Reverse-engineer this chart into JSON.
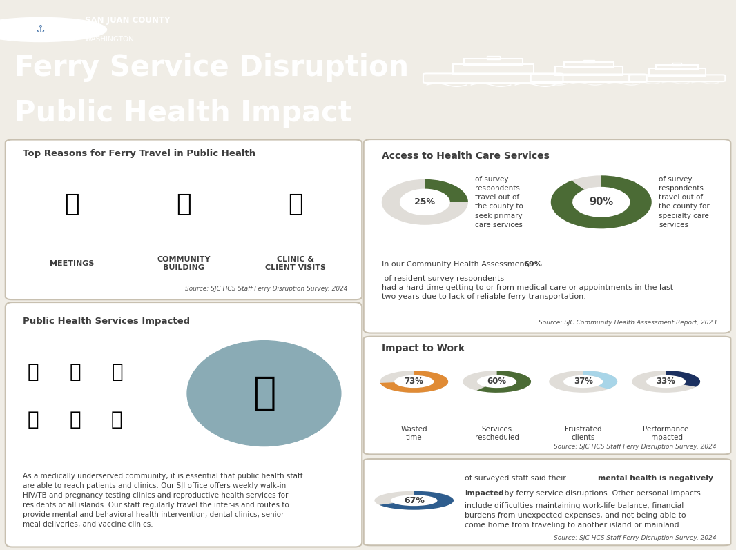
{
  "bg_header_color": "#4472a8",
  "bg_body_color": "#f0ede6",
  "title_line1": "Ferry Service Disruption",
  "title_line2": "Public Health Impact",
  "org_name": "SAN JUAN COUNTY",
  "org_sub": "WASHINGTON",
  "panel1_title": "Top Reasons for Ferry Travel in Public Health",
  "panel1_items": [
    "MEETINGS",
    "COMMUNITY\nBUILDING",
    "CLINIC &\nCLIENT VISITS"
  ],
  "panel1_source": "Source: SJC HCS Staff Ferry Disruption Survey, 2024",
  "panel2_title": "Access to Health Care Services",
  "panel2_pct1": 25,
  "panel2_pct2": 90,
  "panel2_text1": "of survey\nrespondents\ntravel out of\nthe county to\nseek primary\ncare services",
  "panel2_text2": "of survey\nrespondents\ntravel out of\nthe county for\nspecialty care\nservices",
  "panel2_body1": "In our Community Health Assessment, ",
  "panel2_bold": "69%",
  "panel2_body2": " of resident survey respondents\nhad a hard time getting to or from medical care or appointments in the last\ntwo years due to lack of reliable ferry transportation.",
  "panel2_source": "Source: SJC Community Health Assessment Report, 2023",
  "panel3_title": "Public Health Services Impacted",
  "panel3_body": "As a medically underserved community, it is essential that public health staff\nare able to reach patients and clinics. Our SJI office offers weekly walk-in\nHIV/TB and pregnancy testing clinics and reproductive health services for\nresidents of all islands. Our staff regularly travel the inter-island routes to\nprovide mental and behavioral health intervention, dental clinics, senior\nmeal deliveries, and vaccine clinics.",
  "panel4_title": "Impact to Work",
  "panel4_items": [
    {
      "pct": 73,
      "label": "Wasted\ntime",
      "color": "#E08B35"
    },
    {
      "pct": 60,
      "label": "Services\nrescheduled",
      "color": "#4B6B35"
    },
    {
      "pct": 37,
      "label": "Frustrated\nclients",
      "color": "#A8D5E8"
    },
    {
      "pct": 33,
      "label": "Performance\nimpacted",
      "color": "#1B3060"
    }
  ],
  "panel4_source": "Source: SJC HCS Staff Ferry Disruption Survey, 2024",
  "panel5_pct": 67,
  "panel5_color": "#2e5d8e",
  "panel5_body1": "of surveyed staff said their ",
  "panel5_bold": "mental health is negatively\nimpacted",
  "panel5_body2": " by ferry service disruptions. Other personal impacts\ninclude difficulties maintaining work-life balance, financial\nburdens from unexpected expenses, and not being able to\ncome home from traveling to another island or mainland.",
  "panel5_source": "Source: SJC HCS Staff Ferry Disruption Survey, 2024",
  "donut_bg_color": "#e0ddd8",
  "donut_color_green": "#4B6B35",
  "panel_bg": "#ffffff",
  "panel_border": "#c8c0b0",
  "text_dark": "#3d3d3d",
  "source_color": "#555555"
}
